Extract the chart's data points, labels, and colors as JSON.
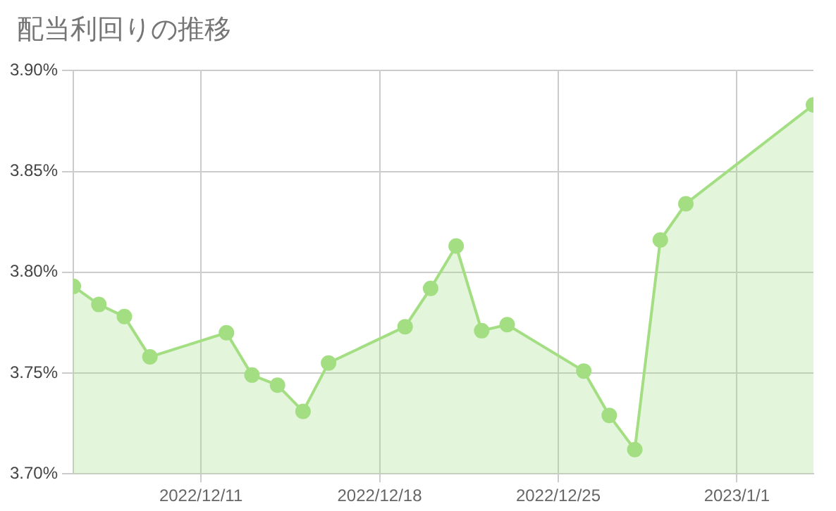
{
  "chart_data": {
    "type": "area",
    "title": "配当利回りの推移",
    "x": [
      "2022-12-06",
      "2022-12-07",
      "2022-12-08",
      "2022-12-09",
      "2022-12-12",
      "2022-12-13",
      "2022-12-14",
      "2022-12-15",
      "2022-12-16",
      "2022-12-19",
      "2022-12-20",
      "2022-12-21",
      "2022-12-22",
      "2022-12-23",
      "2022-12-26",
      "2022-12-27",
      "2022-12-28",
      "2022-12-29",
      "2022-12-30",
      "2023-01-04"
    ],
    "series": [
      {
        "color": "#a3de83",
        "values": [
          3.793,
          3.784,
          3.778,
          3.758,
          3.77,
          3.749,
          3.744,
          3.731,
          3.755,
          3.773,
          3.792,
          3.813,
          3.771,
          3.774,
          3.751,
          3.729,
          3.712,
          3.816,
          3.834,
          3.883
        ]
      }
    ],
    "xlim": [
      "2022-12-06",
      "2023-01-04"
    ],
    "xticks": [
      {
        "value": "2022-12-11",
        "label": "2022/12/11"
      },
      {
        "value": "2022-12-18",
        "label": "2022/12/18"
      },
      {
        "value": "2022-12-25",
        "label": "2022/12/25"
      },
      {
        "value": "2023-01-01",
        "label": "2023/1/1"
      }
    ],
    "ylim": [
      3.7,
      3.9
    ],
    "yticks": [
      {
        "value": 3.7,
        "label": "3.70%"
      },
      {
        "value": 3.75,
        "label": "3.75%"
      },
      {
        "value": 3.8,
        "label": "3.80%"
      },
      {
        "value": 3.85,
        "label": "3.85%"
      },
      {
        "value": 3.9,
        "label": "3.90%"
      }
    ],
    "grid": true,
    "marker": "circle",
    "legend": false
  }
}
